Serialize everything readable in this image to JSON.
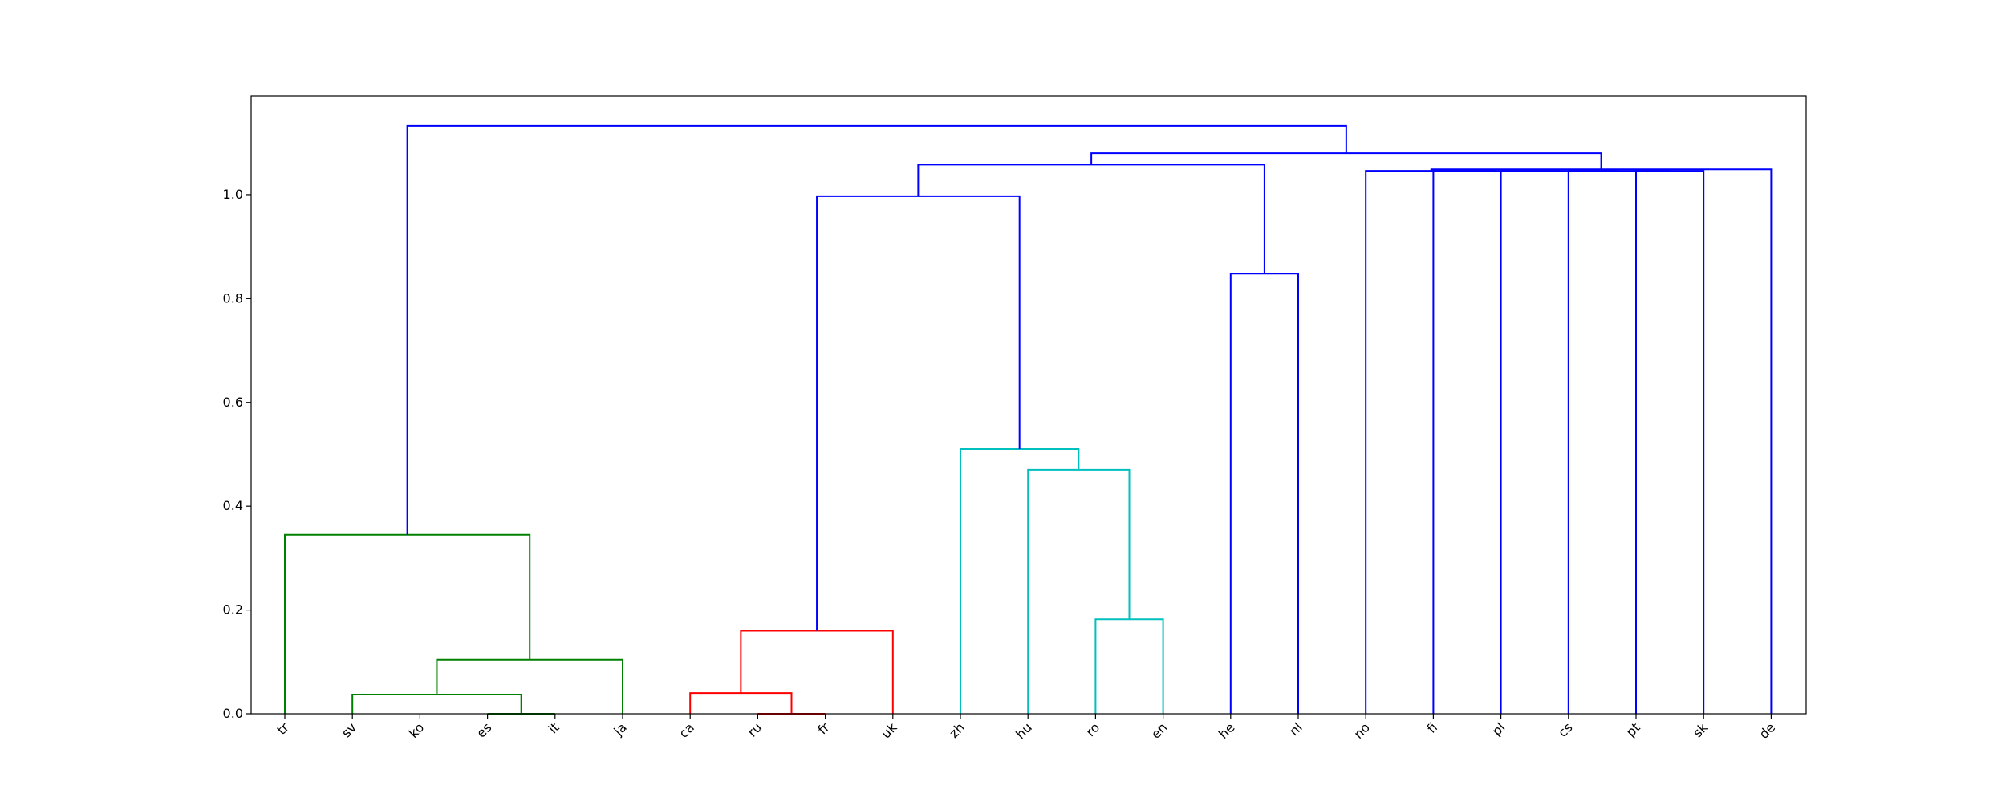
{
  "chart_data": {
    "type": "dendrogram",
    "title": "",
    "xlabel": "",
    "ylabel": "",
    "ylim": [
      0,
      1.19
    ],
    "yticks": [
      0.0,
      0.2,
      0.4,
      0.6,
      0.8,
      1.0
    ],
    "ytick_labels": [
      "0.0",
      "0.2",
      "0.4",
      "0.6",
      "0.8",
      "1.0"
    ],
    "leaves": [
      "tr",
      "sv",
      "ko",
      "es",
      "it",
      "ja",
      "ca",
      "ru",
      "fr",
      "uk",
      "zh",
      "hu",
      "ro",
      "en",
      "he",
      "nl",
      "no",
      "fi",
      "pl",
      "cs",
      "pt",
      "sk",
      "de"
    ],
    "colors": {
      "green": "#008000",
      "red": "#ff0000",
      "cyan": "#00bfbf",
      "blue": "#0000ff"
    },
    "merges": [
      {
        "left": 4,
        "right": 3,
        "height": 0.0,
        "color": "green"
      },
      {
        "left": 1,
        "right": 3.5,
        "height": 0.037,
        "color": "green"
      },
      {
        "left": 2.25,
        "right": 5,
        "height": 0.104,
        "color": "green"
      },
      {
        "left": 0,
        "right": 3.625,
        "height": 0.345,
        "color": "green"
      },
      {
        "left": 7,
        "right": 8,
        "height": 0.0,
        "color": "red"
      },
      {
        "left": 6,
        "right": 7.5,
        "height": 0.04,
        "color": "red"
      },
      {
        "left": 6.75,
        "right": 9,
        "height": 0.16,
        "color": "red"
      },
      {
        "left": 12,
        "right": 13,
        "height": 0.182,
        "color": "cyan"
      },
      {
        "left": 11,
        "right": 12.5,
        "height": 0.47,
        "color": "cyan"
      },
      {
        "left": 10,
        "right": 11.75,
        "height": 0.51,
        "color": "cyan"
      },
      {
        "left": 7.875,
        "right": 10.875,
        "height": 0.997,
        "color": "blue"
      },
      {
        "left": 14,
        "right": 15,
        "height": 0.848,
        "color": "blue"
      },
      {
        "left": 9.375,
        "right": 14.5,
        "height": 1.058,
        "color": "blue"
      },
      {
        "left": 20,
        "right": 21,
        "height": 1.046,
        "color": "blue"
      },
      {
        "left": 19,
        "right": 20.5,
        "height": 1.046,
        "color": "blue"
      },
      {
        "left": 18,
        "right": 19.75,
        "height": 1.046,
        "color": "blue"
      },
      {
        "left": 17,
        "right": 18.875,
        "height": 1.046,
        "color": "blue"
      },
      {
        "left": 16,
        "right": 17.9375,
        "height": 1.046,
        "color": "blue"
      },
      {
        "left": 16.96875,
        "right": 22,
        "height": 1.049,
        "color": "blue"
      },
      {
        "left": 11.9375,
        "right": 19.484375,
        "height": 1.08,
        "color": "blue"
      },
      {
        "left": 1.8125,
        "right": 15.7109375,
        "height": 1.133,
        "color": "blue"
      }
    ]
  }
}
